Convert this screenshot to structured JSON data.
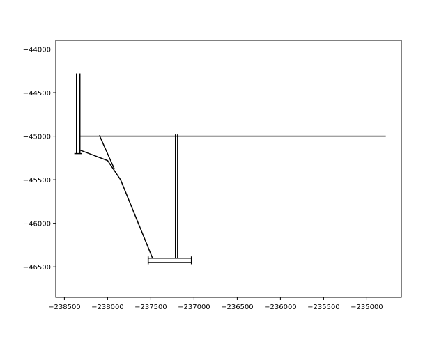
{
  "chart_data": {
    "type": "line",
    "title": "",
    "xlabel": "",
    "ylabel": "",
    "xlim": [
      -238600,
      -234600
    ],
    "ylim": [
      -46850,
      -43900
    ],
    "x_ticks": [
      -238500,
      -238000,
      -237500,
      -237000,
      -236500,
      -236000,
      -235500,
      -235000
    ],
    "x_tick_labels": [
      "−238500",
      "−238000",
      "−237500",
      "−237000",
      "−236500",
      "−236000",
      "−235500",
      "−235000"
    ],
    "y_ticks": [
      -44000,
      -44500,
      -45000,
      -45500,
      -46000,
      -46500
    ],
    "y_tick_labels": [
      "−44000",
      "−44500",
      "−45000",
      "−45500",
      "−46000",
      "−46500"
    ],
    "grid": false,
    "line_color": "#000000",
    "series": [
      {
        "x": [
          -238360,
          -238360
        ],
        "y": [
          -44280,
          -45200
        ]
      },
      {
        "x": [
          -238320,
          -238320
        ],
        "y": [
          -44280,
          -45200
        ]
      },
      {
        "x": [
          -238385,
          -238300
        ],
        "y": [
          -45200,
          -45200
        ]
      },
      {
        "x": [
          -238330,
          -234780
        ],
        "y": [
          -45000,
          -45000
        ]
      },
      {
        "x": [
          -238320,
          -238000,
          -237850,
          -237480
        ],
        "y": [
          -45160,
          -45280,
          -45500,
          -46400
        ]
      },
      {
        "x": [
          -238095,
          -237920
        ],
        "y": [
          -44990,
          -45380
        ]
      },
      {
        "x": [
          -237215,
          -237215
        ],
        "y": [
          -44980,
          -46400
        ]
      },
      {
        "x": [
          -237190,
          -237190
        ],
        "y": [
          -44980,
          -46400
        ]
      },
      {
        "x": [
          -237530,
          -237030
        ],
        "y": [
          -46400,
          -46400
        ]
      },
      {
        "x": [
          -237530,
          -237030
        ],
        "y": [
          -46450,
          -46450
        ]
      },
      {
        "x": [
          -237530,
          -237530
        ],
        "y": [
          -46380,
          -46470
        ]
      },
      {
        "x": [
          -237030,
          -237030
        ],
        "y": [
          -46380,
          -46470
        ]
      }
    ]
  }
}
